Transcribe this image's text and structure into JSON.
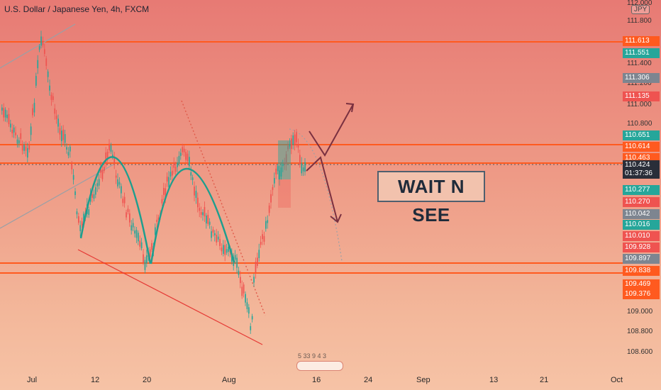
{
  "header": {
    "pair": "U.S. Dollar / Japanese Yen, 4h, FXCM",
    "currency_badge": "JPY"
  },
  "colors": {
    "bull": "#26a69a",
    "bear": "#ef5350",
    "level_line": "#ff5a1f",
    "dashed_trend": "#e05a4a",
    "pattern_curve": "#1e9e8e",
    "arrows": "#7a3040",
    "gray_label": "#7d8590"
  },
  "axis": {
    "price_ticks": [
      "112.000",
      "111.800",
      "111.400",
      "111.200",
      "111.000",
      "110.800",
      "109.000",
      "108.800",
      "108.600"
    ],
    "date_ticks": [
      "Jul",
      "12",
      "20",
      "Aug",
      "16",
      "24",
      "Sep",
      "13",
      "21",
      "Oct"
    ]
  },
  "price_labels": [
    {
      "value": "111.613",
      "color": "#ff5a1f"
    },
    {
      "value": "111.551",
      "color": "#26a69a"
    },
    {
      "value": "111.306",
      "color": "#7d8590"
    },
    {
      "value": "111.135",
      "color": "#ef5350"
    },
    {
      "value": "110.651",
      "color": "#26a69a"
    },
    {
      "value": "110.614",
      "color": "#ff5a1f"
    },
    {
      "value": "110.463",
      "color": "#ff5a1f"
    },
    {
      "value": "110.277",
      "color": "#26a69a"
    },
    {
      "value": "110.270",
      "color": "#ef5350"
    },
    {
      "value": "110.042",
      "color": "#7d8590"
    },
    {
      "value": "110.016",
      "color": "#26a69a"
    },
    {
      "value": "110.010",
      "color": "#ef5350"
    },
    {
      "value": "109.928",
      "color": "#ef5350"
    },
    {
      "value": "109.897",
      "color": "#7d8590"
    },
    {
      "value": "109.838",
      "color": "#ff5a1f"
    },
    {
      "value": "109.469",
      "color": "#ff5a1f"
    },
    {
      "value": "109.376",
      "color": "#ff5a1f"
    }
  ],
  "current_price": {
    "price": "110.424",
    "countdown": "01:37:36",
    "color": "#2a2e39"
  },
  "annotation": {
    "text": "WAIT N SEE"
  },
  "watermark_text": "5 33 9 4 3",
  "chart_data": {
    "type": "candlestick",
    "title": "U.S. Dollar / Japanese Yen, 4h, FXCM",
    "y_unit": "JPY",
    "ylim": [
      108.5,
      112.0
    ],
    "horizontal_levels": [
      111.613,
      110.614,
      110.463,
      109.838,
      109.469
    ],
    "current_price": 110.424,
    "pivot_points": [
      {
        "x": "Jul 1",
        "y": 111.6
      },
      {
        "x": "Jul 5",
        "y": 110.5
      },
      {
        "x": "Jul 8",
        "y": 109.8
      },
      {
        "x": "Jul 13",
        "y": 110.7
      },
      {
        "x": "Jul 19",
        "y": 109.6
      },
      {
        "x": "Jul 27",
        "y": 110.7
      },
      {
        "x": "Aug 3",
        "y": 108.8
      },
      {
        "x": "Aug 10",
        "y": 110.7
      }
    ]
  }
}
